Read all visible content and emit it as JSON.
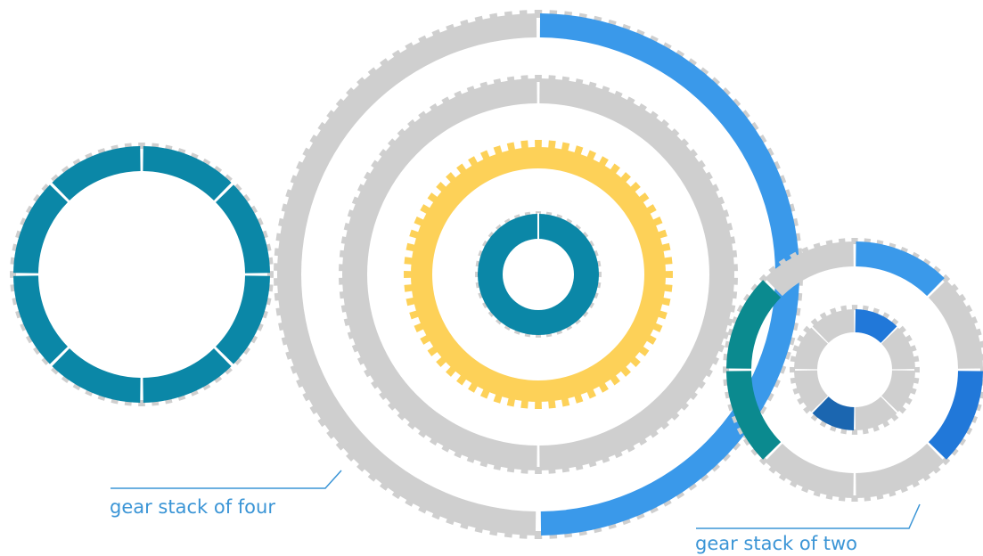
{
  "colors": {
    "gray": "#cfcfcf",
    "teal": "#0b87a7",
    "blue": "#3a99ea",
    "yellow": "#fdd158",
    "gear_blue": "#2178d9",
    "gear_blue_dark": "#1b66b0",
    "gear_teal": "#0b8a8f",
    "label": "#3b95d6"
  },
  "gears": [
    {
      "name": "left-single-gear",
      "rings": [
        {
          "name": "left-gear-ring",
          "segments": 8,
          "highlight": "all",
          "color": "teal"
        }
      ]
    },
    {
      "name": "gear-stack-four",
      "rings": [
        {
          "name": "stack4-ring-outer",
          "segments": 2,
          "highlight": "right-half",
          "color": "blue"
        },
        {
          "name": "stack4-ring-second",
          "segments": 2,
          "highlight": "none",
          "color": "gray"
        },
        {
          "name": "stack4-ring-third",
          "segments": 1,
          "highlight": "all",
          "color": "yellow"
        },
        {
          "name": "stack4-ring-inner",
          "segments": 1,
          "highlight": "all",
          "color": "teal"
        }
      ]
    },
    {
      "name": "gear-stack-two",
      "rings": [
        {
          "name": "stack2-ring-outer",
          "segments": 8,
          "highlight": "segments 0,2 blue; 5,6 teal",
          "color": "gear_blue"
        },
        {
          "name": "stack2-ring-inner",
          "segments": 8,
          "highlight": "segments 0 blue; 4 dark blue",
          "color": "gear_blue"
        }
      ]
    }
  ],
  "labels": {
    "stack_four": "gear stack of four",
    "stack_two": "gear stack of two"
  }
}
